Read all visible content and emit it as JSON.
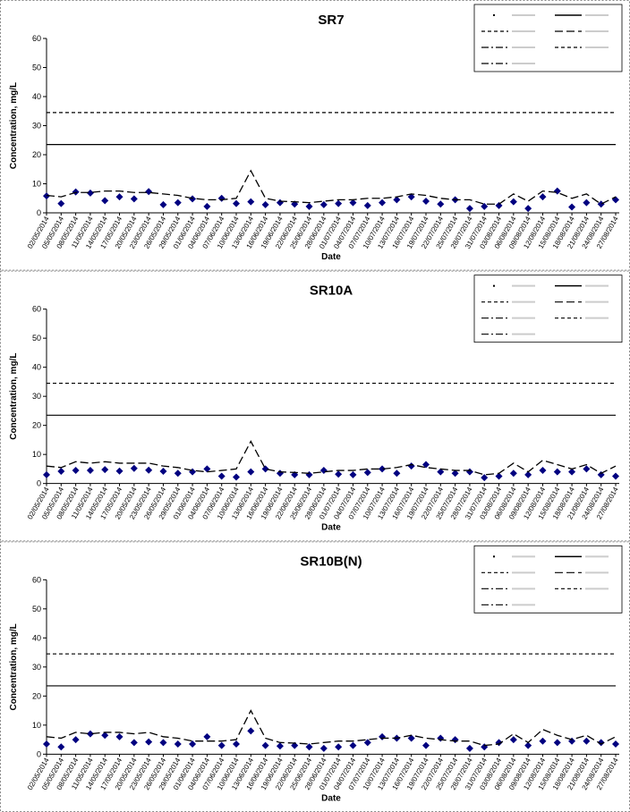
{
  "chart_data": [
    {
      "type": "line",
      "title": "SR7",
      "y_label": "Concentration, mg/L",
      "x_label": "Date",
      "x": [
        "02/05/2014",
        "05/05/2014",
        "08/05/2014",
        "11/05/2014",
        "14/05/2014",
        "17/05/2014",
        "20/05/2014",
        "23/05/2014",
        "26/05/2014",
        "29/05/2014",
        "01/06/2014",
        "04/06/2014",
        "07/06/2014",
        "10/06/2014",
        "13/06/2014",
        "16/06/2014",
        "19/06/2014",
        "22/06/2014",
        "25/06/2014",
        "28/06/2014",
        "01/07/2014",
        "04/07/2014",
        "07/07/2014",
        "10/07/2014",
        "13/07/2014",
        "16/07/2014",
        "19/07/2014",
        "22/07/2014",
        "25/07/2014",
        "28/07/2014",
        "31/07/2014",
        "03/08/2014",
        "06/08/2014",
        "09/08/2014",
        "12/08/2014",
        "15/08/2014",
        "18/08/2014",
        "21/08/2014",
        "24/08/2014",
        "27/08/2014"
      ],
      "ylim": [
        0,
        60
      ],
      "yticks": [
        0,
        10,
        20,
        30,
        40,
        50,
        60
      ],
      "series": [
        {
          "style": "markers",
          "color": "#000080",
          "values": [
            5.8,
            3.2,
            7.2,
            6.8,
            4.2,
            5.5,
            4.8,
            7.3,
            2.8,
            3.5,
            4.8,
            2.2,
            5.0,
            3.2,
            3.8,
            2.8,
            3.5,
            3.0,
            2.2,
            2.8,
            3.2,
            3.5,
            2.5,
            3.5,
            4.5,
            5.5,
            4.0,
            3.0,
            4.5,
            1.5,
            2.2,
            2.5,
            3.8,
            1.5,
            5.5,
            7.5,
            2.0,
            3.5,
            3.0,
            4.5
          ]
        },
        {
          "style": "long-dash",
          "color": "#000000",
          "values": [
            6,
            5.5,
            7,
            7,
            7.5,
            7.5,
            7,
            7,
            6.5,
            6,
            5,
            4.5,
            4.5,
            5,
            14.5,
            5,
            4,
            3.8,
            3.5,
            4,
            4.5,
            4.5,
            5,
            5,
            5.5,
            6.5,
            6,
            5,
            4.5,
            4.5,
            3,
            3,
            6.5,
            4,
            7.5,
            7,
            5,
            6.5,
            3,
            5.5
          ]
        }
      ],
      "reference_lines": [
        {
          "value": 23.5,
          "style": "solid",
          "color": "#000000"
        },
        {
          "value": 34.5,
          "style": "dashed",
          "color": "#000000"
        }
      ]
    },
    {
      "type": "line",
      "title": "SR10A",
      "y_label": "Concentration, mg/L",
      "x_label": "Date",
      "x": [
        "02/05/2014",
        "05/05/2014",
        "08/05/2014",
        "11/05/2014",
        "14/05/2014",
        "17/05/2014",
        "20/05/2014",
        "23/05/2014",
        "26/05/2014",
        "29/05/2014",
        "01/06/2014",
        "04/06/2014",
        "07/06/2014",
        "10/06/2014",
        "13/06/2014",
        "16/06/2014",
        "19/06/2014",
        "22/06/2014",
        "25/06/2014",
        "28/06/2014",
        "01/07/2014",
        "04/07/2014",
        "07/07/2014",
        "10/07/2014",
        "13/07/2014",
        "16/07/2014",
        "19/07/2014",
        "22/07/2014",
        "25/07/2014",
        "28/07/2014",
        "31/07/2014",
        "03/08/2014",
        "06/08/2014",
        "09/08/2014",
        "12/08/2014",
        "15/08/2014",
        "18/08/2014",
        "21/08/2014",
        "24/08/2014",
        "27/08/2014"
      ],
      "ylim": [
        0,
        60
      ],
      "yticks": [
        0,
        10,
        20,
        30,
        40,
        50,
        60
      ],
      "series": [
        {
          "style": "markers",
          "color": "#000080",
          "values": [
            3.0,
            4.2,
            4.5,
            4.5,
            4.8,
            4.3,
            5.2,
            4.6,
            4.2,
            3.5,
            4.0,
            5.0,
            2.5,
            2.2,
            4.0,
            5.0,
            3.5,
            3.0,
            3.0,
            4.5,
            3.2,
            3.0,
            3.8,
            5.0,
            3.5,
            6.0,
            6.5,
            4.0,
            3.5,
            4.0,
            2.0,
            2.5,
            3.5,
            3.0,
            4.5,
            4.0,
            4.0,
            5.0,
            3.0,
            2.5
          ]
        },
        {
          "style": "long-dash",
          "color": "#000000",
          "values": [
            6,
            5.5,
            7.5,
            7,
            7.5,
            7,
            7,
            7,
            6,
            5.5,
            4.5,
            4,
            4.5,
            5,
            14.5,
            5,
            4,
            3.8,
            3.5,
            4,
            4.5,
            4.5,
            5,
            5,
            5.5,
            6.5,
            5.5,
            5,
            4.5,
            4.5,
            3,
            3.5,
            7,
            4,
            8,
            6.5,
            5,
            6.5,
            3.5,
            6
          ]
        }
      ],
      "reference_lines": [
        {
          "value": 23.5,
          "style": "solid",
          "color": "#000000"
        },
        {
          "value": 34.5,
          "style": "dashed",
          "color": "#000000"
        }
      ]
    },
    {
      "type": "line",
      "title": "SR10B(N)",
      "y_label": "Concentration, mg/L",
      "x_label": "Date",
      "x": [
        "02/05/2014",
        "05/05/2014",
        "08/05/2014",
        "11/05/2014",
        "14/05/2014",
        "17/05/2014",
        "20/05/2014",
        "23/05/2014",
        "26/05/2014",
        "29/05/2014",
        "01/06/2014",
        "04/06/2014",
        "07/06/2014",
        "10/06/2014",
        "13/06/2014",
        "16/06/2014",
        "19/06/2014",
        "22/06/2014",
        "25/06/2014",
        "28/06/2014",
        "01/07/2014",
        "04/07/2014",
        "07/07/2014",
        "10/07/2014",
        "13/07/2014",
        "16/07/2014",
        "19/07/2014",
        "22/07/2014",
        "25/07/2014",
        "28/07/2014",
        "31/07/2014",
        "03/08/2014",
        "06/08/2014",
        "09/08/2014",
        "12/08/2014",
        "15/08/2014",
        "18/08/2014",
        "21/08/2014",
        "24/08/2014",
        "27/08/2014"
      ],
      "ylim": [
        0,
        60
      ],
      "yticks": [
        0,
        10,
        20,
        30,
        40,
        50,
        60
      ],
      "series": [
        {
          "style": "markers",
          "color": "#000080",
          "values": [
            3.5,
            2.5,
            5.0,
            7.0,
            6.5,
            6.0,
            4.0,
            4.2,
            4.0,
            3.5,
            3.5,
            6.0,
            3.0,
            3.5,
            8.0,
            3.0,
            2.8,
            3.0,
            2.5,
            2.0,
            2.5,
            3.0,
            4.0,
            6.0,
            5.5,
            5.5,
            3.0,
            5.5,
            5.0,
            2.0,
            2.5,
            4.0,
            5.0,
            3.0,
            4.5,
            4.0,
            4.5,
            4.5,
            4.0,
            3.5
          ]
        },
        {
          "style": "long-dash",
          "color": "#000000",
          "values": [
            6,
            5.5,
            7.5,
            7,
            7.5,
            7.5,
            7,
            7.5,
            6,
            5.5,
            4.5,
            4.5,
            4.5,
            5,
            15,
            5.5,
            4,
            3.8,
            3.5,
            4,
            4.5,
            4.5,
            5,
            5.5,
            5.5,
            6.5,
            5.5,
            5,
            4.5,
            4.5,
            3,
            3.5,
            7,
            4,
            8.5,
            6.5,
            5,
            6.5,
            3.5,
            6
          ]
        }
      ],
      "reference_lines": [
        {
          "value": 23.5,
          "style": "solid",
          "color": "#000000"
        },
        {
          "value": 34.5,
          "style": "dashed",
          "color": "#000000"
        }
      ]
    }
  ]
}
